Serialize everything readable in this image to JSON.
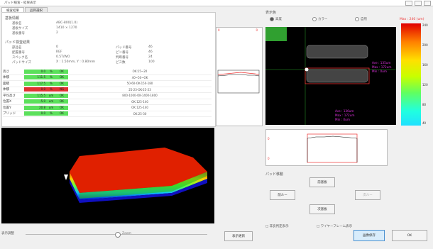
{
  "window": {
    "title": "パッド検査 - 結果表示"
  },
  "tabs": [
    {
      "label": "検査結果"
    },
    {
      "label": "品目選択"
    }
  ],
  "info": {
    "section1_title": "基板情報",
    "fields1": [
      {
        "label": "基板名",
        "value": "ABC-800(1.0)"
      },
      {
        "label": "基板サイズ",
        "value": "1410 × 1270"
      },
      {
        "label": "基板番号",
        "value": "2"
      }
    ],
    "section2_title": "パッド検査結果",
    "fields2_left": [
      {
        "label": "部品名",
        "value": "0"
      },
      {
        "label": "配置番号",
        "value": "REF"
      },
      {
        "label": "スペック名",
        "value": "0.5T/WO"
      },
      {
        "label": "パッドサイズ",
        "value": "X : 1.50mm, Y : 0.80mm"
      }
    ],
    "fields2_right": [
      {
        "label": "パッド番号",
        "value": "46"
      },
      {
        "label": "ピン番号",
        "value": "46"
      },
      {
        "label": "判断番号",
        "value": "24"
      },
      {
        "label": "ピス数",
        "value": "100"
      }
    ]
  },
  "results": [
    {
      "name": "高さ",
      "value": "0.0",
      "unit": "%",
      "result": "OK",
      "spec": "OK:15~20",
      "status": "green"
    },
    {
      "name": "体積",
      "value": "111.5",
      "unit": "%",
      "result": "OK",
      "spec": "40~50~OK",
      "status": "green"
    },
    {
      "name": "面積",
      "value": "117.5",
      "unit": "%",
      "result": "OK",
      "spec": "50-60-OK-150-180",
      "status": "green"
    },
    {
      "name": "体積",
      "value": "0.0",
      "unit": "%",
      "result": "NG",
      "spec": "25-23-OK-25-23",
      "status": "red"
    },
    {
      "name": "平均高さ",
      "value": "115.5",
      "unit": "um",
      "result": "OK",
      "spec": "800-1000-OK-1400-1800",
      "status": "green"
    },
    {
      "name": "位置X",
      "value": "-5.0",
      "unit": "um",
      "result": "OK",
      "spec": "OK:125-140",
      "status": "green"
    },
    {
      "name": "位置Y",
      "value": "20.8",
      "unit": "um",
      "result": "OK",
      "spec": "OK:125-140",
      "status": "green"
    },
    {
      "name": "ブリッジ",
      "value": "0.0",
      "unit": "%",
      "result": "OK",
      "spec": "OK:25-30",
      "status": "green"
    }
  ],
  "display": {
    "title": "表示色",
    "options": [
      {
        "label": "高度",
        "selected": true
      },
      {
        "label": "カラー",
        "selected": false
      },
      {
        "label": "自然",
        "selected": false
      }
    ]
  },
  "side_profile": {
    "mark_left": "0",
    "mark_right": "0"
  },
  "map": {
    "pad_top": {
      "ave": "",
      "max": "",
      "min": ""
    },
    "pad_mid": {
      "ave": "Ave : 135um",
      "max": "Max : 172um",
      "min": "Min : 0um"
    },
    "bottom": {
      "ave": "Ave : 136um",
      "max": "Max : 172um",
      "min": "Min : 0um"
    }
  },
  "bottom_profile": {
    "mark_top": "0",
    "mark_bottom": "0"
  },
  "legend": {
    "title": "Max : 240 (um)",
    "ticks": [
      "240",
      "200",
      "160",
      "120",
      "80",
      "40"
    ]
  },
  "pad_move": {
    "title": "パッド移動",
    "up": "前基板",
    "left": "前ルー",
    "right": "次ルー",
    "down": "次基板"
  },
  "checkbox_labels": {
    "left": "□ 非良判定表示",
    "right": "□ ワイヤーフレーム表示"
  },
  "bottom_bar": {
    "zoom_label": "表示調整",
    "zoom_center": "Zoom",
    "reset_button": "表示更新",
    "save_button": "画像保存",
    "ok_button": "OK"
  },
  "colors": {
    "ok": "#5be05b",
    "ng": "#e03030",
    "accent": "#4a90d0"
  }
}
